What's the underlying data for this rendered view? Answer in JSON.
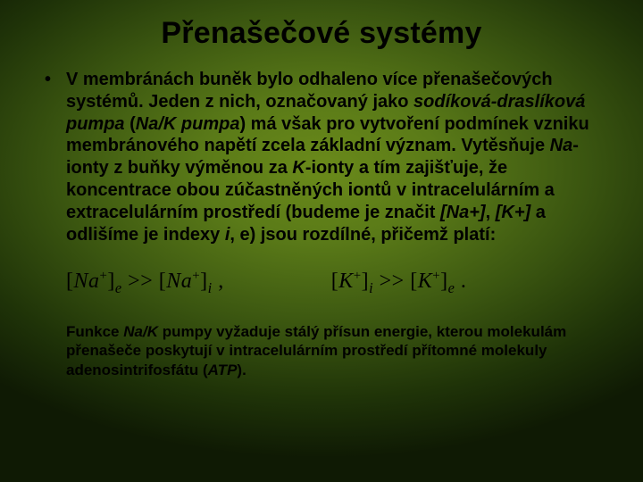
{
  "slide": {
    "title": "Přenašečové systémy",
    "bullet": {
      "parts": [
        {
          "t": "V membránách buněk bylo odhaleno více přenašečových systémů. Jeden z nich, označovaný jako ",
          "i": false
        },
        {
          "t": "sodíková-draslíková pumpa",
          "i": true
        },
        {
          "t": " (",
          "i": false
        },
        {
          "t": "Na/K pumpa",
          "i": true
        },
        {
          "t": ") má však pro vytvoření podmínek vzniku membránového napětí zcela základní význam. Vytěsňuje ",
          "i": false
        },
        {
          "t": "Na",
          "i": true
        },
        {
          "t": "-ionty z buňky výměnou za ",
          "i": false
        },
        {
          "t": "K",
          "i": true
        },
        {
          "t": "-ionty a tím zajišťuje, že koncentrace obou zúčastněných iontů v intracelulárním a extracelulárním prostředí (budeme je značit ",
          "i": false
        },
        {
          "t": "[Na+]",
          "i": true
        },
        {
          "t": ", ",
          "i": false
        },
        {
          "t": "[K+]",
          "i": true
        },
        {
          "t": " a odlišíme je indexy ",
          "i": false
        },
        {
          "t": "i",
          "i": true
        },
        {
          "t": ", e) jsou rozdílné, přičemž  platí:",
          "i": false
        }
      ]
    },
    "equations": {
      "left": {
        "sym": "Na",
        "sup": "+",
        "lhs_sub": "e",
        "op": ">>",
        "rhs_sub": "i",
        "tail": ","
      },
      "right": {
        "sym": "K",
        "sup": "+",
        "lhs_sub": "i",
        "op": ">>",
        "rhs_sub": "e",
        "tail": "."
      }
    },
    "footer": {
      "parts": [
        {
          "t": "Funkce ",
          "i": false
        },
        {
          "t": "Na/K",
          "i": true
        },
        {
          "t": " pumpy vyžaduje stálý přísun energie, kterou molekulám přenašeče poskytují v intracelulárním prostředí přítomné molekuly adenosintrifosfátu (",
          "i": false
        },
        {
          "t": "ATP",
          "i": true
        },
        {
          "t": ").",
          "i": false
        }
      ]
    }
  },
  "style": {
    "bg_gradient_center": "#6a8a1a",
    "bg_gradient_edge": "#0f1a04",
    "title_fontsize": 34,
    "body_fontsize": 20,
    "footer_fontsize": 17,
    "eq_fontsize": 24,
    "text_color": "#000000",
    "font_family": "Arial",
    "eq_font_family": "Times New Roman"
  }
}
